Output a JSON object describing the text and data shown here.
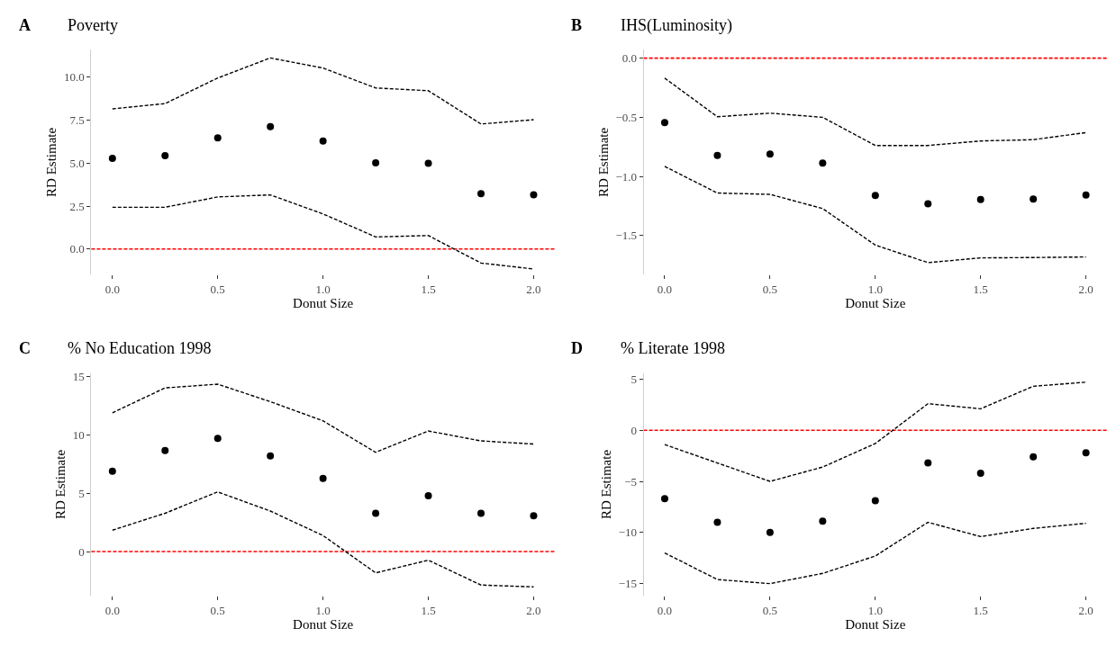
{
  "chart_data": [
    {
      "type": "scatter",
      "title": "Poverty",
      "annotations": [
        "A"
      ],
      "xlabel": "Donut Size",
      "ylabel": "RD Estimate",
      "x": [
        0,
        0.25,
        0.5,
        0.75,
        1.0,
        1.25,
        1.5,
        1.75,
        2.0
      ],
      "series": [
        {
          "type": "line",
          "line_style": "dashed",
          "marker": "none",
          "color": "#000000",
          "values": [
            8.16,
            8.47,
            9.96,
            11.13,
            10.54,
            9.38,
            9.22,
            7.28,
            7.53
          ]
        },
        {
          "type": "line",
          "line_style": "dashed",
          "marker": "none",
          "color": "#000000",
          "values": [
            2.43,
            2.43,
            3.03,
            3.15,
            2.04,
            0.7,
            0.78,
            -0.82,
            -1.17
          ]
        },
        {
          "marker": "circle",
          "color": "#000000",
          "values": [
            5.28,
            5.44,
            6.47,
            7.13,
            6.29,
            5.01,
            4.99,
            3.22,
            3.15
          ]
        }
      ],
      "ref_lines": [
        {
          "axis": "y",
          "value": 0,
          "color": "#ff0000",
          "line_style": "dashed"
        }
      ],
      "xlim": [
        -0.1,
        2.1
      ],
      "xticks": [
        {
          "value": 0,
          "label": "0.0"
        },
        {
          "value": 0.5,
          "label": "0.5"
        },
        {
          "value": 1,
          "label": "1.0"
        },
        {
          "value": 1.5,
          "label": "1.5"
        },
        {
          "value": 2,
          "label": "2.0"
        }
      ],
      "ylim": [
        -1.5,
        11.6
      ],
      "yticks": [
        {
          "value": 0,
          "label": "0.0"
        },
        {
          "value": 2.5,
          "label": "2.5"
        },
        {
          "value": 5,
          "label": "5.0"
        },
        {
          "value": 7.5,
          "label": "7.5"
        },
        {
          "value": 10,
          "label": "10.0"
        }
      ],
      "grid": false
    },
    {
      "type": "scatter",
      "title": "IHS(Luminosity)",
      "annotations": [
        "B"
      ],
      "xlabel": "Donut Size",
      "ylabel": "RD Estimate",
      "x": [
        0,
        0.25,
        0.5,
        0.75,
        1.0,
        1.25,
        1.5,
        1.75,
        2.0
      ],
      "series": [
        {
          "type": "line",
          "line_style": "dashed",
          "marker": "none",
          "color": "#000000",
          "values": [
            -0.169,
            -0.495,
            -0.465,
            -0.5,
            -0.738,
            -0.738,
            -0.7,
            -0.689,
            -0.629
          ]
        },
        {
          "type": "line",
          "line_style": "dashed",
          "marker": "none",
          "color": "#000000",
          "values": [
            -0.915,
            -1.14,
            -1.151,
            -1.271,
            -1.58,
            -1.728,
            -1.688,
            -1.685,
            -1.68
          ]
        },
        {
          "marker": "circle",
          "color": "#000000",
          "values": [
            -0.544,
            -0.822,
            -0.811,
            -0.887,
            -1.16,
            -1.23,
            -1.195,
            -1.19,
            -1.157
          ]
        }
      ],
      "ref_lines": [
        {
          "axis": "y",
          "value": 0,
          "color": "#ff0000",
          "line_style": "dashed"
        }
      ],
      "xlim": [
        -0.1,
        2.1
      ],
      "xticks": [
        {
          "value": 0,
          "label": "0.0"
        },
        {
          "value": 0.5,
          "label": "0.5"
        },
        {
          "value": 1,
          "label": "1.0"
        },
        {
          "value": 1.5,
          "label": "1.5"
        },
        {
          "value": 2,
          "label": "2.0"
        }
      ],
      "ylim": [
        -1.83,
        0.07
      ],
      "yticks": [
        {
          "value": -1.5,
          "label": "−1.5"
        },
        {
          "value": -1,
          "label": "−1.0"
        },
        {
          "value": -0.5,
          "label": "−0.5"
        },
        {
          "value": 0,
          "label": "0.0"
        }
      ],
      "grid": false
    },
    {
      "type": "scatter",
      "title": "% No Education 1998",
      "annotations": [
        "C"
      ],
      "xlabel": "Donut Size",
      "ylabel": "RD Estimate",
      "x": [
        0,
        0.25,
        0.5,
        0.75,
        1.0,
        1.25,
        1.5,
        1.75,
        2.0
      ],
      "series": [
        {
          "type": "line",
          "line_style": "dashed",
          "marker": "none",
          "color": "#000000",
          "values": [
            11.89,
            14.02,
            14.34,
            12.84,
            11.2,
            8.5,
            10.33,
            9.48,
            9.21
          ]
        },
        {
          "type": "line",
          "line_style": "dashed",
          "marker": "none",
          "color": "#000000",
          "values": [
            1.83,
            3.28,
            5.11,
            3.47,
            1.37,
            -1.83,
            -0.74,
            -2.87,
            -3.03
          ]
        },
        {
          "marker": "circle",
          "color": "#000000",
          "values": [
            6.89,
            8.66,
            9.7,
            8.2,
            6.26,
            3.28,
            4.78,
            3.28,
            3.06
          ]
        }
      ],
      "ref_lines": [
        {
          "axis": "y",
          "value": 0,
          "color": "#ff0000",
          "line_style": "dashed"
        }
      ],
      "xlim": [
        -0.1,
        2.1
      ],
      "xticks": [
        {
          "value": 0,
          "label": "0.0"
        },
        {
          "value": 0.5,
          "label": "0.5"
        },
        {
          "value": 1,
          "label": "1.0"
        },
        {
          "value": 1.5,
          "label": "1.5"
        },
        {
          "value": 2,
          "label": "2.0"
        }
      ],
      "ylim": [
        -3.8,
        15.3
      ],
      "yticks": [
        0,
        5,
        10,
        15
      ],
      "grid": false
    },
    {
      "type": "scatter",
      "title": "% Literate 1998",
      "annotations": [
        "D"
      ],
      "xlabel": "Donut Size",
      "ylabel": "RD Estimate",
      "x": [
        0,
        0.25,
        0.5,
        0.75,
        1.0,
        1.25,
        1.5,
        1.75,
        2.0
      ],
      "series": [
        {
          "type": "line",
          "line_style": "dashed",
          "marker": "none",
          "color": "#000000",
          "values": [
            -1.4,
            -3.2,
            -5.0,
            -3.6,
            -1.3,
            2.6,
            2.1,
            4.3,
            4.7
          ]
        },
        {
          "type": "line",
          "line_style": "dashed",
          "marker": "none",
          "color": "#000000",
          "values": [
            -12.0,
            -14.6,
            -15.0,
            -14.0,
            -12.3,
            -9.0,
            -10.4,
            -9.6,
            -9.1
          ]
        },
        {
          "marker": "circle",
          "color": "#000000",
          "values": [
            -6.7,
            -9.0,
            -10.0,
            -8.9,
            -6.9,
            -3.2,
            -4.2,
            -2.6,
            -2.2
          ]
        }
      ],
      "ref_lines": [
        {
          "axis": "y",
          "value": 0,
          "color": "#ff0000",
          "line_style": "dashed"
        }
      ],
      "xlim": [
        -0.1,
        2.1
      ],
      "xticks": [
        {
          "value": 0,
          "label": "0.0"
        },
        {
          "value": 0.5,
          "label": "0.5"
        },
        {
          "value": 1,
          "label": "1.0"
        },
        {
          "value": 1.5,
          "label": "1.5"
        },
        {
          "value": 2,
          "label": "2.0"
        }
      ],
      "ylim": [
        -16.2,
        5.6
      ],
      "yticks": [
        {
          "value": -15,
          "label": "−15"
        },
        {
          "value": -10,
          "label": "−10"
        },
        {
          "value": -5,
          "label": "−5"
        },
        {
          "value": 0,
          "label": "0"
        },
        {
          "value": 5,
          "label": "5"
        }
      ],
      "grid": false
    }
  ]
}
